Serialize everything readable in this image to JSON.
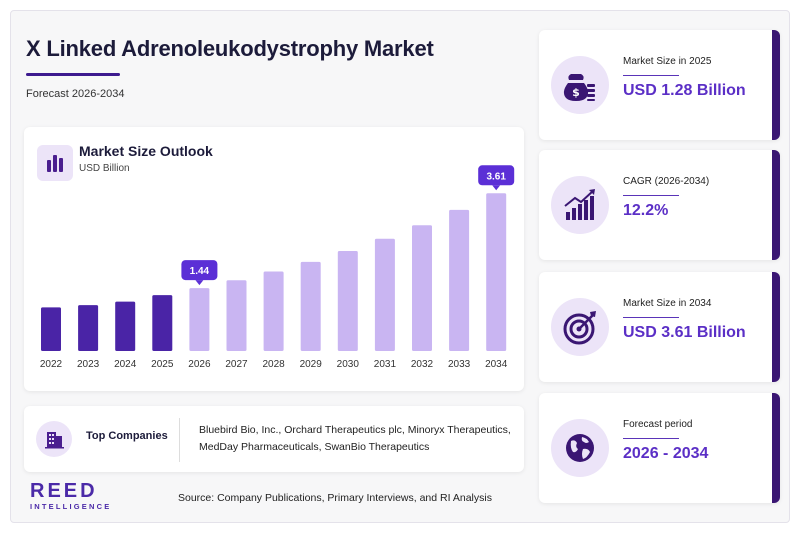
{
  "header": {
    "title": "X Linked Adrenoleukodystrophy Market",
    "subtitle": "Forecast 2026-2034"
  },
  "chart_card": {
    "title": "Market Size Outlook",
    "unit": "USD Billion",
    "icon": "bar-chart-icon"
  },
  "chart_data": {
    "type": "bar",
    "title": "Market Size Outlook",
    "ylabel": "USD Billion",
    "categories": [
      "2022",
      "2023",
      "2024",
      "2025",
      "2026",
      "2027",
      "2028",
      "2029",
      "2030",
      "2031",
      "2032",
      "2033",
      "2034"
    ],
    "values": [
      1.0,
      1.05,
      1.13,
      1.28,
      1.44,
      1.62,
      1.82,
      2.04,
      2.29,
      2.57,
      2.88,
      3.23,
      3.61
    ],
    "data_labels": {
      "2026": "1.44",
      "2034": "3.61"
    },
    "ylim": [
      0,
      3.8
    ],
    "grid": false,
    "colors": {
      "historical": "#4a24a6",
      "forecast": "#c9b5f2",
      "label_bg": "#5b2fd6"
    },
    "historical_count": 4
  },
  "companies": {
    "label": "Top Companies",
    "text": "Bluebird Bio, Inc., Orchard Therapeutics plc, Minoryx Therapeutics, MedDay Pharmaceuticals, SwanBio Therapeutics",
    "icon": "building-icon"
  },
  "logo": {
    "main": "REED",
    "sub": "INTELLIGENCE"
  },
  "source": "Source: Company Publications, Primary Interviews, and RI Analysis",
  "stats": [
    {
      "label": "Market Size in 2025",
      "value": "USD 1.28 Billion",
      "icon": "money-bag-icon"
    },
    {
      "label": "CAGR (2026-2034)",
      "value": "12.2%",
      "icon": "growth-chart-icon"
    },
    {
      "label": "Market Size in 2034",
      "value": "USD 3.61 Billion",
      "icon": "target-icon"
    },
    {
      "label": "Forecast period",
      "value": "2026 - 2034",
      "icon": "globe-icon"
    }
  ],
  "colors": {
    "accent": "#5b2fc6",
    "dark_accent": "#3a1673",
    "icon_bg": "#ece4f8"
  }
}
